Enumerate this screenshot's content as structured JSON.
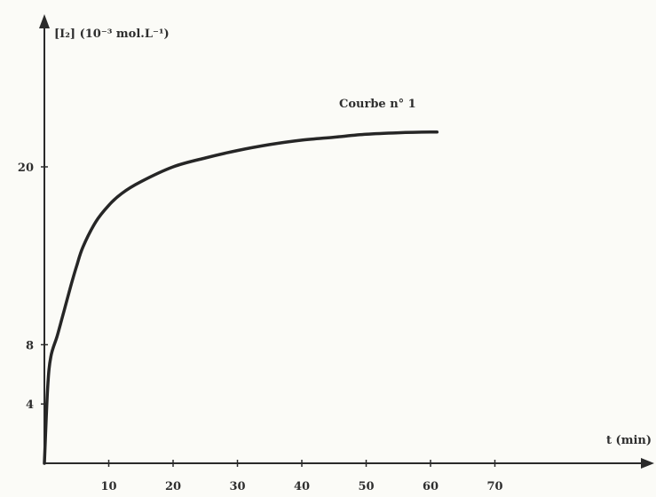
{
  "chart_data": {
    "type": "line",
    "ylabel": "[I₂] (10⁻³ mol.L⁻¹)",
    "xlabel": "t (min)",
    "xlim": [
      0,
      86
    ],
    "ylim": [
      0,
      30
    ],
    "x_ticks": [
      10,
      20,
      30,
      40,
      50,
      60,
      70
    ],
    "y_ticks": [
      4,
      8,
      20
    ],
    "grid": false,
    "series": [
      {
        "name": "Courbe n° 1",
        "x": [
          0,
          0.5,
          1,
          2,
          3,
          4,
          5,
          6,
          8,
          10,
          12,
          15,
          20,
          25,
          30,
          35,
          40,
          45,
          50,
          55,
          60,
          61
        ],
        "y": [
          0,
          5,
          7.2,
          8.6,
          10.2,
          11.8,
          13.3,
          14.6,
          16.3,
          17.4,
          18.2,
          19.0,
          20.0,
          20.6,
          21.1,
          21.5,
          21.8,
          22.0,
          22.2,
          22.3,
          22.35,
          22.35
        ]
      }
    ],
    "annotation": "Courbe n° 1"
  }
}
